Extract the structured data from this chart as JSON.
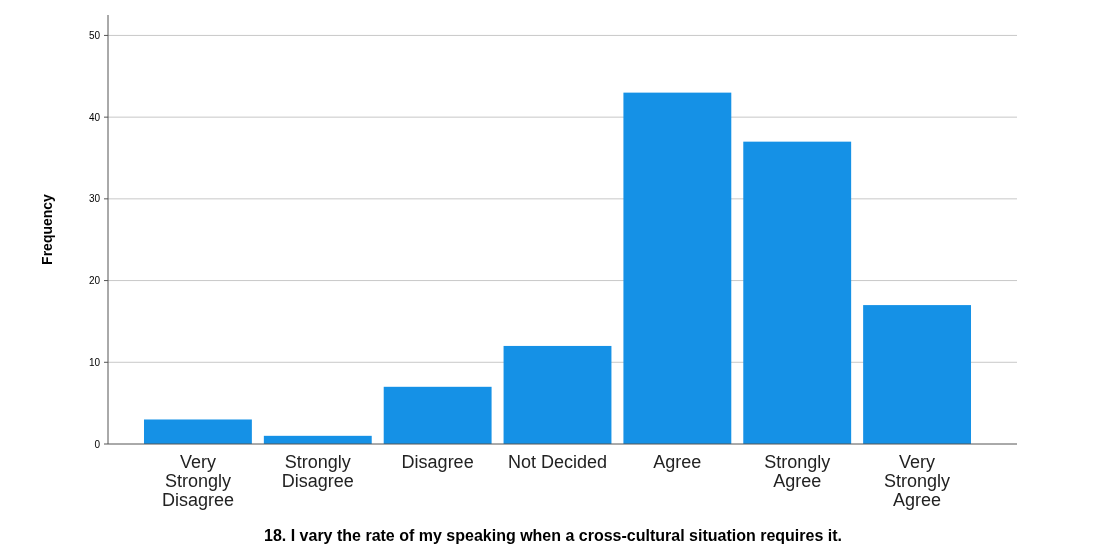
{
  "chart_data": {
    "type": "bar",
    "xlabel": "18.  I vary the rate of my speaking when a cross-cultural situation requires it.",
    "ylabel": "Frequency",
    "categories": [
      "Very Strongly Disagree",
      "Strongly Disagree",
      "Disagree",
      "Not Decided",
      "Agree",
      "Strongly Agree",
      "Very Strongly Agree"
    ],
    "values": [
      3,
      1,
      7,
      12,
      43,
      37,
      17
    ],
    "color": "#1591e6",
    "ylim": [
      0,
      52.5
    ],
    "yticks": [
      0,
      10,
      20,
      30,
      40,
      50
    ],
    "grid": "y"
  }
}
